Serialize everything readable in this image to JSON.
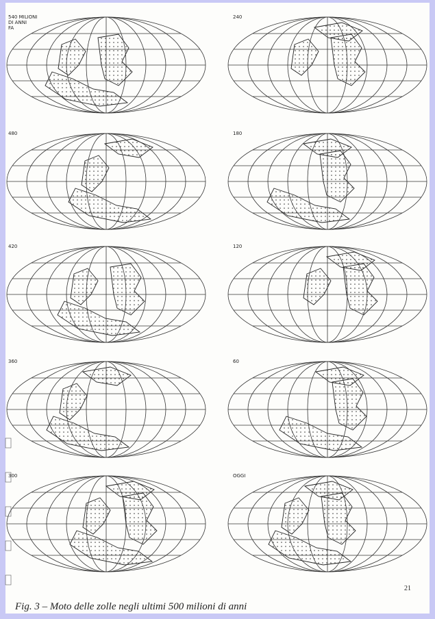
{
  "maps": [
    {
      "label_lines": [
        "540 MILIONI",
        "DI ANNI",
        "FA"
      ]
    },
    {
      "label_lines": [
        "240"
      ]
    },
    {
      "label_lines": [
        "480"
      ]
    },
    {
      "label_lines": [
        "180"
      ]
    },
    {
      "label_lines": [
        "420"
      ]
    },
    {
      "label_lines": [
        "120"
      ]
    },
    {
      "label_lines": [
        "360"
      ]
    },
    {
      "label_lines": [
        "60"
      ]
    },
    {
      "label_lines": [
        "300"
      ]
    },
    {
      "label_lines": [
        "OGGI"
      ]
    }
  ],
  "page_number": "21",
  "caption": "Fig. 3 – Moto delle zolle negli ultimi 500 milioni di anni"
}
